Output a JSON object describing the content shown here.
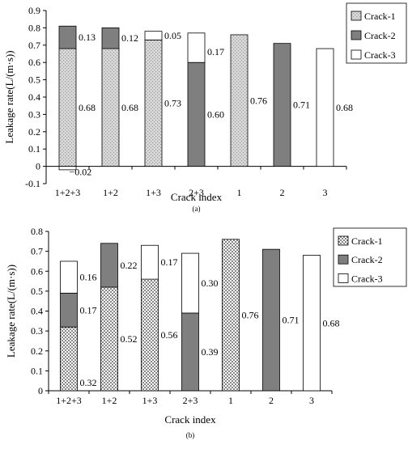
{
  "chart_data": [
    {
      "panel_label": "(a)",
      "type": "bar",
      "stacked": true,
      "xlabel": "Crack index",
      "ylabel": "Leakage rate(L/(m·s))",
      "ylim": [
        -0.1,
        0.9
      ],
      "yticks": [
        "-0.1",
        "0",
        "0.1",
        "0.2",
        "0.3",
        "0.4",
        "0.5",
        "0.6",
        "0.7",
        "0.8",
        "0.9"
      ],
      "grid": false,
      "legend_position": "top-right",
      "categories": [
        "1+2+3",
        "1+2",
        "1+3",
        "2+3",
        "1",
        "2",
        "3"
      ],
      "series": [
        {
          "name": "Crack-1",
          "pattern": "light-dotted",
          "values": [
            0.68,
            0.68,
            0.73,
            0,
            0.76,
            0,
            0
          ]
        },
        {
          "name": "Crack-2",
          "pattern": "dark-gray",
          "values": [
            0.13,
            0.12,
            0,
            0.6,
            0,
            0.71,
            0
          ]
        },
        {
          "name": "Crack-3",
          "pattern": "white",
          "values": [
            -0.02,
            0,
            0.05,
            0.17,
            0,
            0,
            0.68
          ]
        }
      ],
      "labels": [
        {
          "cat": 0,
          "side": "middle",
          "text": "0.68"
        },
        {
          "cat": 0,
          "side": "upper",
          "text": "0.13"
        },
        {
          "cat": 0,
          "side": "below",
          "text": "−0.02"
        },
        {
          "cat": 1,
          "side": "middle",
          "text": "0.68"
        },
        {
          "cat": 1,
          "side": "upper",
          "text": "0.12"
        },
        {
          "cat": 2,
          "side": "middle",
          "text": "0.73"
        },
        {
          "cat": 2,
          "side": "upper",
          "text": "0.05"
        },
        {
          "cat": 3,
          "side": "middle",
          "text": "0.60"
        },
        {
          "cat": 3,
          "side": "upper",
          "text": "0.17"
        },
        {
          "cat": 4,
          "side": "middle",
          "text": "0.76"
        },
        {
          "cat": 5,
          "side": "middle",
          "text": "0.71"
        },
        {
          "cat": 6,
          "side": "middle",
          "text": "0.68"
        }
      ]
    },
    {
      "panel_label": "(b)",
      "type": "bar",
      "stacked": true,
      "xlabel": "Crack index",
      "ylabel": "Leakage rate(L/(m·s))",
      "ylim": [
        0,
        0.8
      ],
      "yticks": [
        "0",
        "0.1",
        "0.2",
        "0.3",
        "0.4",
        "0.5",
        "0.6",
        "0.7",
        "0.8"
      ],
      "grid": false,
      "legend_position": "top-right",
      "categories": [
        "1+2+3",
        "1+2",
        "1+3",
        "2+3",
        "1",
        "2",
        "3"
      ],
      "series": [
        {
          "name": "Crack-1",
          "pattern": "dotted",
          "values": [
            0.32,
            0.52,
            0.56,
            0,
            0.76,
            0,
            0
          ]
        },
        {
          "name": "Crack-2",
          "pattern": "dark-gray",
          "values": [
            0.17,
            0.22,
            0,
            0.39,
            0,
            0.71,
            0
          ]
        },
        {
          "name": "Crack-3",
          "pattern": "white",
          "values": [
            0.16,
            0,
            0.17,
            0.3,
            0,
            0,
            0.68
          ]
        }
      ],
      "labels": [
        {
          "cat": 0,
          "seg": 0,
          "text": "0.32"
        },
        {
          "cat": 0,
          "seg": 1,
          "text": "0.17"
        },
        {
          "cat": 0,
          "seg": 2,
          "text": "0.16"
        },
        {
          "cat": 1,
          "seg": 0,
          "text": "0.52"
        },
        {
          "cat": 1,
          "seg": 1,
          "text": "0.22"
        },
        {
          "cat": 2,
          "seg": 0,
          "text": "0.56"
        },
        {
          "cat": 2,
          "seg": 2,
          "text": "0.17"
        },
        {
          "cat": 3,
          "seg": 1,
          "text": "0.39"
        },
        {
          "cat": 3,
          "seg": 2,
          "text": "0.30"
        },
        {
          "cat": 4,
          "seg": 0,
          "text": "0.76"
        },
        {
          "cat": 5,
          "seg": 1,
          "text": "0.71"
        },
        {
          "cat": 6,
          "seg": 2,
          "text": "0.68"
        }
      ]
    }
  ]
}
